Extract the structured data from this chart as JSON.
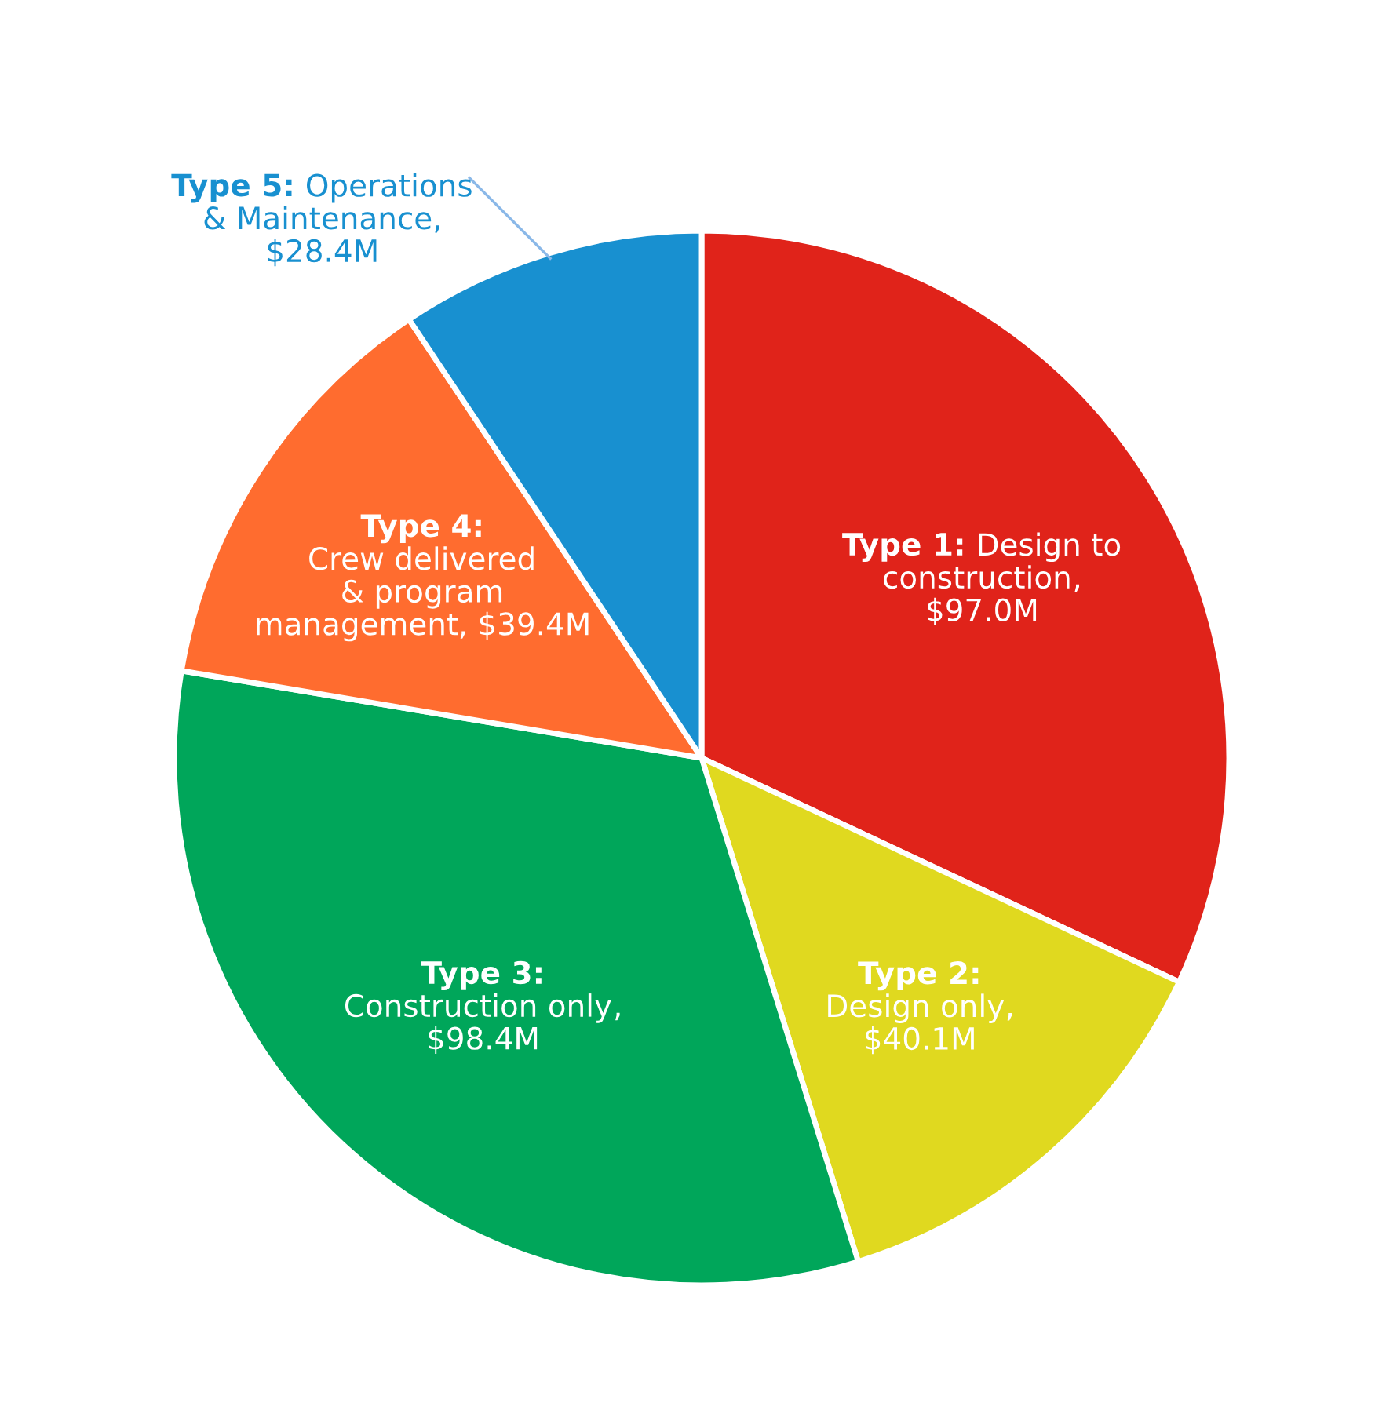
{
  "chart_data": {
    "type": "pie",
    "categories": [
      "Type 1: Design to\nconstruction",
      "Type 2:\nDesign only",
      "Type 3:\nConstruction only",
      "Type 4:\nCrew delivered\n& program\nmanagement",
      "Type 5: Operations\n& Maintenance"
    ],
    "values": [
      97.0,
      40.1,
      98.4,
      39.4,
      28.4
    ],
    "value_labels": [
      ",\n$97.0M",
      ",\n$40.1M",
      ",\n$98.4M",
      ", $39.4M",
      ",\n$28.4M"
    ],
    "colors": [
      "#e0231a",
      "#e0d91f",
      "#00a65a",
      "#ff6c2f",
      "#1890d0"
    ],
    "legend": false
  }
}
